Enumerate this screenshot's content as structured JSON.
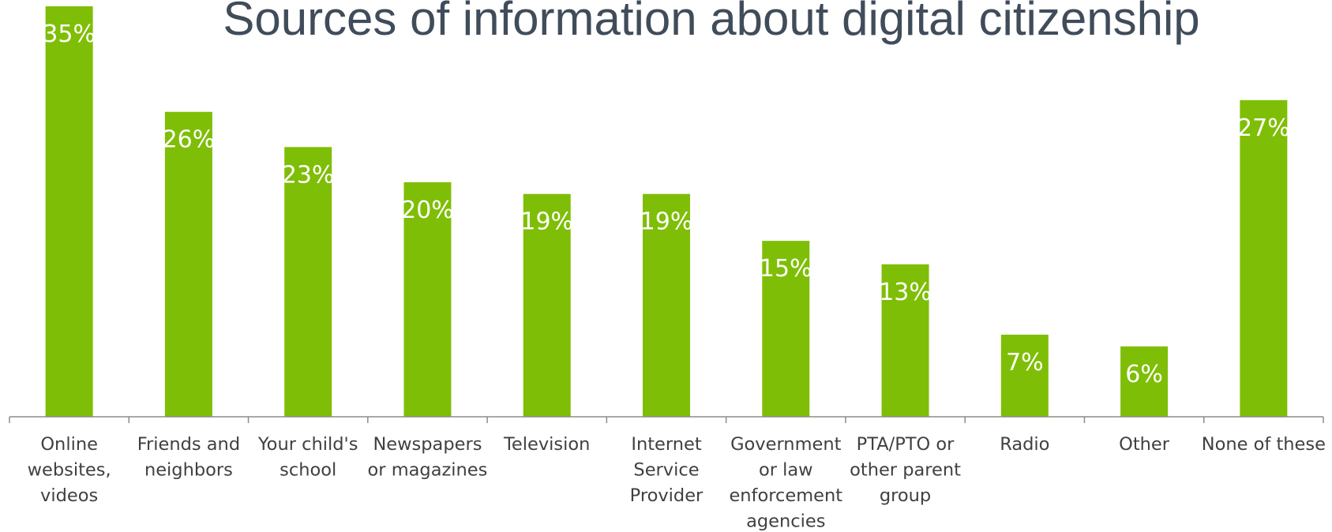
{
  "chart_data": {
    "type": "bar",
    "title": "Sources of information about digital citizenship",
    "categories": [
      "Online websites, videos",
      "Friends and neighbors",
      "Your child's school",
      "Newspapers or magazines",
      "Television",
      "Internet Service Provider",
      "Government or law enforcement agencies",
      "PTA/PTO or other parent group",
      "Radio",
      "Other",
      "None of these"
    ],
    "category_lines": [
      [
        "Online",
        "websites,",
        "videos"
      ],
      [
        "Friends and",
        "neighbors"
      ],
      [
        "Your child's",
        "school"
      ],
      [
        "Newspapers",
        "or magazines"
      ],
      [
        "Television"
      ],
      [
        "Internet",
        "Service",
        "Provider"
      ],
      [
        "Government",
        "or law",
        "enforcement",
        "agencies"
      ],
      [
        "PTA/PTO or",
        "other parent",
        "group"
      ],
      [
        "Radio"
      ],
      [
        "Other"
      ],
      [
        "None of these"
      ]
    ],
    "values": [
      35,
      26,
      23,
      20,
      19,
      19,
      15,
      13,
      7,
      6,
      27
    ],
    "data_labels": [
      "35%",
      "26%",
      "23%",
      "20%",
      "19%",
      "19%",
      "15%",
      "13%",
      "7%",
      "6%",
      "27%"
    ],
    "unit": "%",
    "ylim": [
      0,
      35
    ],
    "grid": false,
    "legend": "none",
    "colors": {
      "bar": "#7fbe06",
      "data_label": "#ffffff",
      "title": "#404c5a",
      "axis": "#8c8c8c",
      "category_label": "#404040"
    }
  }
}
